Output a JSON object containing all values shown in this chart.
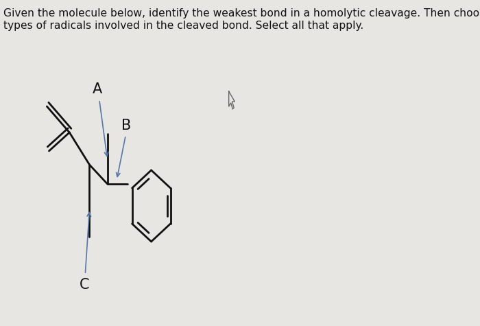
{
  "background_color": "#e8e6e2",
  "text_question_line1": "Given the molecule below, identify the weakest bond in a homolytic cleavage. Then choose the correct",
  "text_question_line2": "types of radicals involved in the cleaved bond. Select all that apply.",
  "text_fontsize": 11.2,
  "label_A": "A",
  "label_B": "B",
  "label_C": "C",
  "label_fontsize": 15,
  "arrow_color": "#5577aa",
  "molecule_color": "#111111",
  "molecule_lw": 2.0
}
